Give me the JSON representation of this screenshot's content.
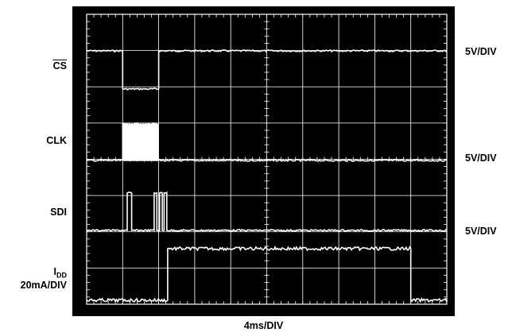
{
  "chart_data": {
    "type": "line",
    "title": "",
    "grid": true,
    "background": "#000000",
    "trace_color": "#ffffff",
    "x_divisions": 10,
    "y_divisions": 8,
    "x_scale": "4ms/DIV",
    "x_unit": "ms",
    "x_range": [
      0,
      40
    ],
    "channels": [
      {
        "label": "CS",
        "label_overline": true,
        "scale": "5V/DIV",
        "states": [
          {
            "from": 0,
            "to": 4.0,
            "level": "high"
          },
          {
            "from": 4.0,
            "to": 8.0,
            "level": "low"
          },
          {
            "from": 8.0,
            "to": 40,
            "level": "high"
          }
        ]
      },
      {
        "label": "CLK",
        "scale": "5V/DIV",
        "burst": {
          "from": 4.0,
          "to": 8.0,
          "pulses": 16
        },
        "idle_level": "low"
      },
      {
        "label": "SDI",
        "scale": "5V/DIV",
        "pulses": [
          {
            "from": 4.5,
            "to": 5.0
          },
          {
            "from": 7.5,
            "to": 7.8
          },
          {
            "from": 8.1,
            "to": 8.4
          },
          {
            "from": 8.6,
            "to": 8.9
          }
        ],
        "idle_level": "low"
      },
      {
        "label": "I",
        "label_sub": "DD",
        "label_line2": "20mA/DIV",
        "states": [
          {
            "from": 0,
            "to": 9.0,
            "level": "low"
          },
          {
            "from": 9.0,
            "to": 36.0,
            "level": "high"
          },
          {
            "from": 36.0,
            "to": 40,
            "level": "low"
          }
        ]
      }
    ]
  }
}
